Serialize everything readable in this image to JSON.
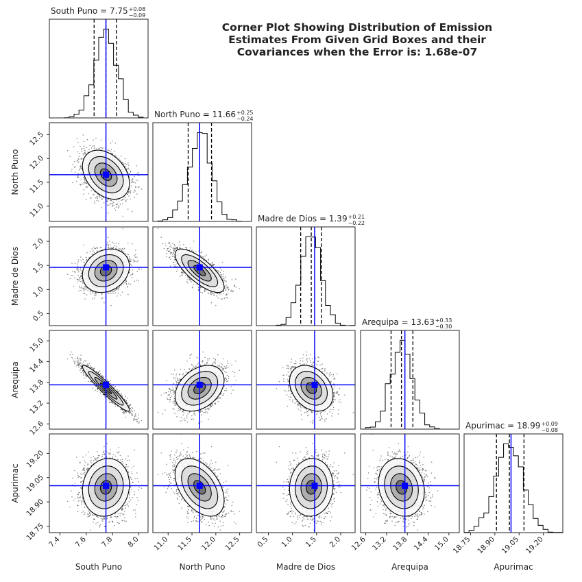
{
  "title_lines": [
    "Corner Plot Showing Distribution of Emission",
    "Estimates From Given Grid Boxes and their",
    "Covariances when the Error is: 1.68e-07"
  ],
  "chart_data": {
    "type": "corner",
    "title": "Corner Plot Showing Distribution of Emission Estimates From Given Grid Boxes and their Covariances when the Error is: 1.68e-07",
    "colors": {
      "truth": "#0000ff",
      "hist": "#000000",
      "quantile": "#000000",
      "points": "#000000"
    },
    "parameters": [
      {
        "name": "South Puno",
        "median": 7.75,
        "plus": "0.08",
        "minus": "0.09",
        "median_label": "7.75",
        "range": [
          7.32,
          8.07
        ],
        "ticks": [
          7.4,
          7.6,
          7.8,
          8.0
        ],
        "tick_labels": [
          "7.4",
          "7.6",
          "7.8",
          "8.0"
        ],
        "truth": 7.75
      },
      {
        "name": "North Puno",
        "median": 11.66,
        "plus": "0.25",
        "minus": "0.24",
        "median_label": "11.66",
        "range": [
          10.68,
          12.75
        ],
        "ticks": [
          11.0,
          11.5,
          12.0,
          12.5
        ],
        "tick_labels": [
          "11.0",
          "11.5",
          "12.0",
          "12.5"
        ],
        "truth": 11.66
      },
      {
        "name": "Madre de Dios",
        "median": 1.39,
        "plus": "0.21",
        "minus": "0.22",
        "median_label": "1.39",
        "range": [
          0.25,
          2.3
        ],
        "ticks": [
          0.5,
          1.0,
          1.5,
          2.0
        ],
        "tick_labels": [
          "0.5",
          "1.0",
          "1.5",
          "2.0"
        ],
        "truth": 1.46
      },
      {
        "name": "Arequipa",
        "median": 13.63,
        "plus": "0.33",
        "minus": "0.30",
        "median_label": "13.63",
        "range": [
          12.45,
          15.3
        ],
        "ticks": [
          12.6,
          13.2,
          13.8,
          14.4,
          15.0
        ],
        "tick_labels": [
          "12.6",
          "13.2",
          "13.8",
          "14.4",
          "15.0"
        ],
        "truth": 13.73
      },
      {
        "name": "Apurimac",
        "median": 18.99,
        "plus": "0.09",
        "minus": "0.08",
        "median_label": "18.99",
        "range": [
          18.71,
          19.32
        ],
        "ticks": [
          18.75,
          18.9,
          19.05,
          19.2
        ],
        "tick_labels": [
          "18.75",
          "18.90",
          "19.05",
          "19.20"
        ],
        "truth": 19.0
      }
    ],
    "correlations": [
      [
        1.0,
        -0.35,
        0.2,
        -0.95,
        0.1
      ],
      [
        -0.35,
        1.0,
        -0.75,
        0.35,
        -0.45
      ],
      [
        0.2,
        -0.75,
        1.0,
        -0.3,
        0.05
      ],
      [
        -0.95,
        0.35,
        -0.3,
        1.0,
        -0.15
      ],
      [
        0.1,
        -0.45,
        0.05,
        -0.15,
        1.0
      ]
    ],
    "quantiles": [
      0.16,
      0.5,
      0.84
    ]
  }
}
